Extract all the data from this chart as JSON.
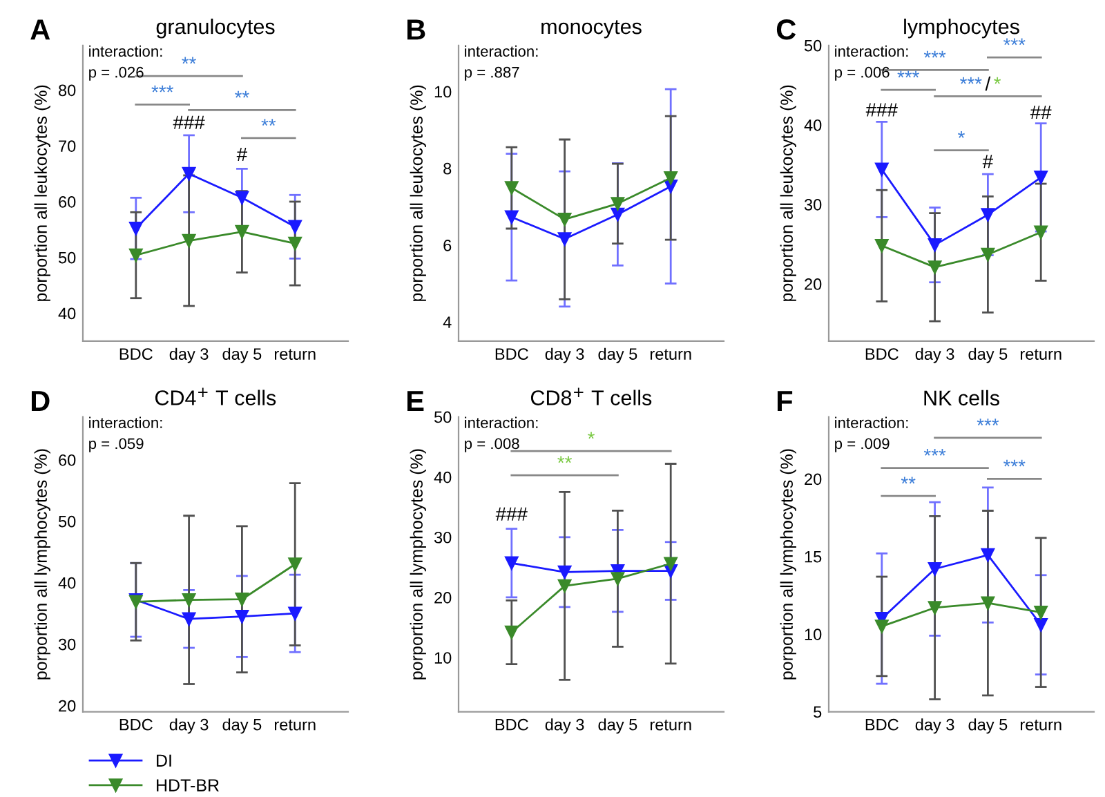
{
  "chart_data": [
    {
      "type": "line",
      "title": "granulocytes",
      "ylabel": "porportion all leukocytes (%)",
      "categories": [
        "BDC",
        "day 3",
        "day 5",
        "return"
      ],
      "ylim": [
        35,
        88
      ],
      "yticks": [
        40,
        50,
        60,
        70,
        80
      ],
      "marker": "triangle",
      "series": [
        {
          "color": "#1a1aff",
          "values": [
            55.2,
            65.0,
            60.7,
            55.5
          ],
          "errors": [
            5.5,
            6.9,
            5.2,
            5.7
          ]
        },
        {
          "color": "#3a8a2a",
          "values": [
            50.4,
            53.0,
            54.6,
            52.5
          ],
          "errors": [
            7.7,
            11.7,
            7.3,
            7.5
          ]
        }
      ],
      "annotations": [
        "A",
        "interaction:\np = .026",
        "**",
        "***",
        "**",
        "**",
        "###",
        "#"
      ]
    },
    {
      "type": "line",
      "title": "monocytes",
      "ylabel": "porportion all leukocytes (%)",
      "categories": [
        "BDC",
        "day 3",
        "day 5",
        "return"
      ],
      "ylim": [
        3.5,
        11.2
      ],
      "yticks": [
        4,
        6,
        8,
        10
      ],
      "marker": "triangle",
      "series": [
        {
          "color": "#1a1aff",
          "values": [
            6.73,
            6.16,
            6.8,
            7.53
          ],
          "errors": [
            1.65,
            1.76,
            1.33,
            2.53
          ]
        },
        {
          "color": "#3a8a2a",
          "values": [
            7.49,
            6.67,
            7.08,
            7.75
          ],
          "errors": [
            1.06,
            2.08,
            1.04,
            1.61
          ]
        }
      ],
      "annotations": [
        "B",
        "interaction:\np = .887"
      ]
    },
    {
      "type": "line",
      "title": "lymphocytes",
      "ylabel": "porportion all leukocytes (%)",
      "categories": [
        "BDC",
        "day 3",
        "day 5",
        "return"
      ],
      "ylim": [
        12.8,
        50
      ],
      "yticks": [
        20,
        30,
        40,
        50
      ],
      "marker": "triangle",
      "series": [
        {
          "color": "#1a1aff",
          "values": [
            34.4,
            24.9,
            28.7,
            33.4
          ],
          "errors": [
            6.0,
            4.7,
            5.1,
            6.8
          ]
        },
        {
          "color": "#3a8a2a",
          "values": [
            24.8,
            22.1,
            23.7,
            26.5
          ],
          "errors": [
            7.0,
            6.8,
            7.3,
            6.1
          ]
        }
      ],
      "annotations": [
        "C",
        "interaction:\np = .006",
        "***",
        "***",
        "***",
        "***/*",
        "*",
        "###",
        "#",
        "##"
      ]
    },
    {
      "type": "line",
      "title": "CD4$^{+}$ T cells",
      "ylabel": "porportion all lymphocytes (%)",
      "categories": [
        "BDC",
        "day 3",
        "day 5",
        "return"
      ],
      "ylim": [
        19,
        67
      ],
      "yticks": [
        20,
        30,
        40,
        50,
        60
      ],
      "marker": "triangle",
      "legend": "bottom",
      "series": [
        {
          "name": "DI",
          "color": "#1a1aff",
          "values": [
            37.2,
            34.1,
            34.5,
            35.0
          ],
          "errors": [
            6.0,
            4.7,
            6.6,
            6.3
          ]
        },
        {
          "name": "HDT-BR",
          "color": "#3a8a2a",
          "values": [
            36.9,
            37.2,
            37.3,
            43.0
          ],
          "errors": [
            6.3,
            13.7,
            11.9,
            13.2
          ]
        }
      ],
      "annotations": [
        "D",
        "interaction:\np = .059"
      ]
    },
    {
      "type": "line",
      "title": "CD8$^{+}$ T cells",
      "ylabel": "porportion all lymphocytes (%)",
      "categories": [
        "BDC",
        "day 3",
        "day 5",
        "return"
      ],
      "ylim": [
        1,
        50
      ],
      "yticks": [
        10,
        20,
        30,
        40,
        50
      ],
      "marker": "triangle",
      "series": [
        {
          "color": "#1a1aff",
          "values": [
            25.7,
            24.2,
            24.4,
            24.4
          ],
          "errors": [
            5.7,
            5.8,
            6.8,
            4.8
          ]
        },
        {
          "color": "#3a8a2a",
          "values": [
            14.2,
            21.9,
            23.1,
            25.6
          ],
          "errors": [
            5.3,
            15.6,
            11.3,
            16.6
          ]
        }
      ],
      "annotations": [
        "E",
        "interaction:\np = .008",
        "*",
        "**",
        "###"
      ]
    },
    {
      "type": "line",
      "title": "NK cells",
      "ylabel": "porportion all lymphocytes (%)",
      "categories": [
        "BDC",
        "day 3",
        "day 5",
        "return"
      ],
      "ylim": [
        5,
        24
      ],
      "yticks": [
        5,
        10,
        15,
        20
      ],
      "marker": "triangle",
      "series": [
        {
          "color": "#1a1aff",
          "values": [
            11.0,
            14.2,
            15.1,
            10.6
          ],
          "errors": [
            4.2,
            4.3,
            4.35,
            3.2
          ]
        },
        {
          "color": "#3a8a2a",
          "values": [
            10.5,
            11.7,
            12.0,
            11.4
          ],
          "errors": [
            3.2,
            5.9,
            5.95,
            4.8
          ]
        }
      ],
      "annotations": [
        "F",
        "interaction:\np = .009",
        "***",
        "***",
        "***",
        "**"
      ]
    }
  ]
}
